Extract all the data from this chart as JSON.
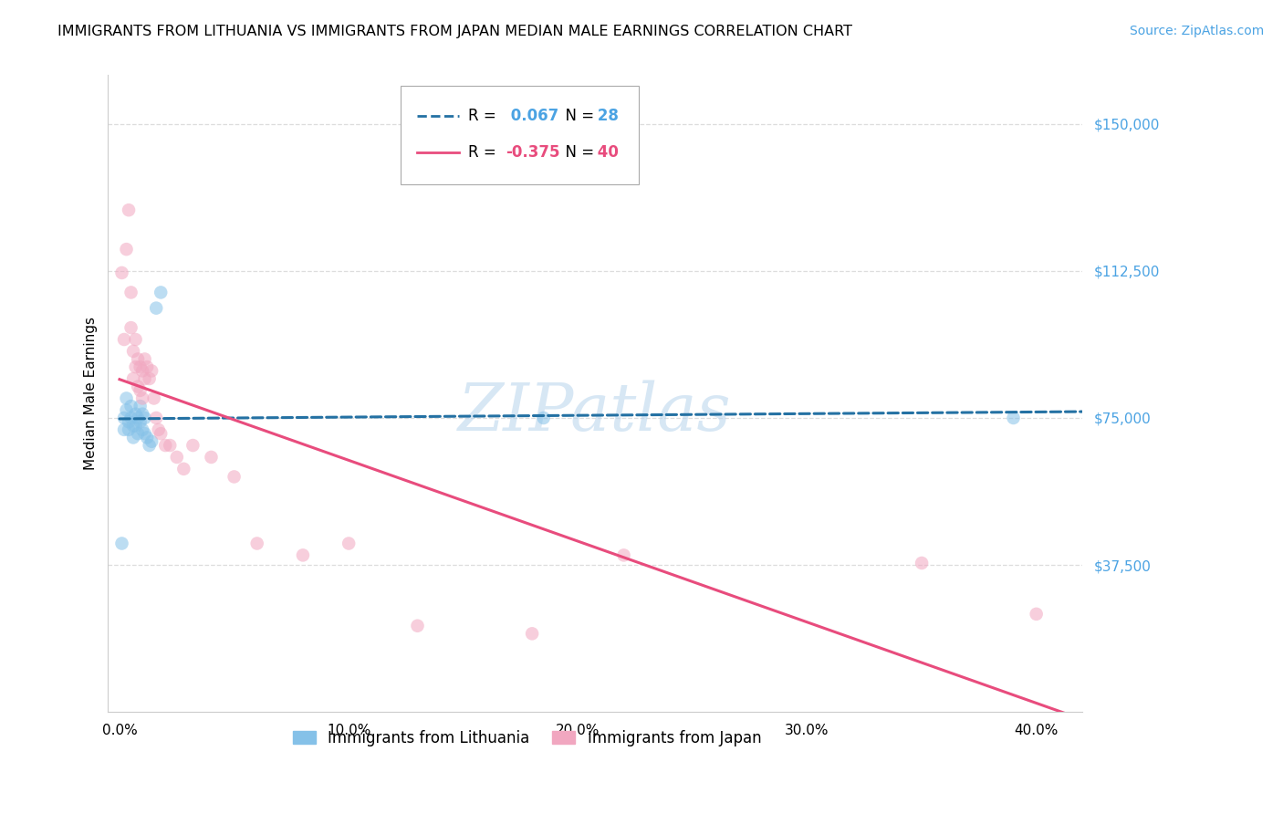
{
  "title": "IMMIGRANTS FROM LITHUANIA VS IMMIGRANTS FROM JAPAN MEDIAN MALE EARNINGS CORRELATION CHART",
  "source": "Source: ZipAtlas.com",
  "ylabel": "Median Male Earnings",
  "xlabel_ticks": [
    "0.0%",
    "10.0%",
    "20.0%",
    "30.0%",
    "40.0%"
  ],
  "xlabel_vals": [
    0.0,
    0.1,
    0.2,
    0.3,
    0.4
  ],
  "ytick_labels": [
    "$37,500",
    "$75,000",
    "$112,500",
    "$150,000"
  ],
  "ytick_vals": [
    37500,
    75000,
    112500,
    150000
  ],
  "ylim": [
    0,
    162500
  ],
  "xlim": [
    -0.005,
    0.42
  ],
  "watermark": "ZIPatlas",
  "lithuania_R": 0.067,
  "lithuania_N": 28,
  "japan_R": -0.375,
  "japan_N": 40,
  "lithuania_color": "#85C1E8",
  "japan_color": "#F1A7C0",
  "lithuania_line_color": "#2471A3",
  "japan_line_color": "#E84C7D",
  "lithuania_x": [
    0.001,
    0.002,
    0.002,
    0.003,
    0.003,
    0.004,
    0.004,
    0.005,
    0.005,
    0.006,
    0.006,
    0.007,
    0.007,
    0.008,
    0.008,
    0.009,
    0.009,
    0.01,
    0.01,
    0.011,
    0.011,
    0.012,
    0.013,
    0.014,
    0.016,
    0.018,
    0.185,
    0.39
  ],
  "lithuania_y": [
    43000,
    75000,
    72000,
    80000,
    77000,
    74000,
    72000,
    78000,
    75000,
    73000,
    70000,
    76000,
    73000,
    75000,
    71000,
    78000,
    74000,
    76000,
    72000,
    75000,
    71000,
    70000,
    68000,
    69000,
    103000,
    107000,
    75000,
    75000
  ],
  "japan_x": [
    0.001,
    0.002,
    0.003,
    0.004,
    0.005,
    0.005,
    0.006,
    0.006,
    0.007,
    0.007,
    0.008,
    0.008,
    0.009,
    0.009,
    0.01,
    0.01,
    0.011,
    0.011,
    0.012,
    0.013,
    0.014,
    0.015,
    0.016,
    0.017,
    0.018,
    0.02,
    0.022,
    0.025,
    0.028,
    0.032,
    0.04,
    0.05,
    0.06,
    0.08,
    0.1,
    0.13,
    0.18,
    0.22,
    0.35,
    0.4
  ],
  "japan_y": [
    112000,
    95000,
    118000,
    128000,
    107000,
    98000,
    92000,
    85000,
    95000,
    88000,
    90000,
    83000,
    88000,
    82000,
    87000,
    80000,
    90000,
    85000,
    88000,
    85000,
    87000,
    80000,
    75000,
    72000,
    71000,
    68000,
    68000,
    65000,
    62000,
    68000,
    65000,
    60000,
    43000,
    40000,
    43000,
    22000,
    20000,
    40000,
    38000,
    25000
  ],
  "background_color": "#FFFFFF",
  "grid_color": "#DDDDDD",
  "title_fontsize": 11.5,
  "axis_label_fontsize": 11,
  "tick_fontsize": 11,
  "legend_fontsize": 12,
  "source_fontsize": 10,
  "watermark_fontsize": 52,
  "scatter_size": 110,
  "scatter_alpha": 0.55,
  "line_width": 2.2
}
